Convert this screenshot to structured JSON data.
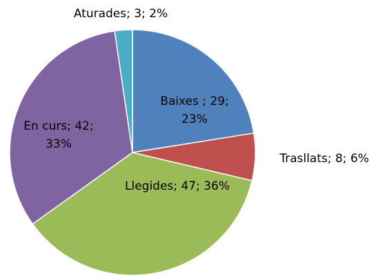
{
  "chart_data": {
    "type": "pie",
    "values": [
      29,
      8,
      47,
      42,
      3
    ],
    "value_labels": [
      "Baixes ; 29; 23%",
      "Trasllats; 8; 6%",
      "Llegides; 47; 36%",
      "En curs; 42; 33%",
      "Aturades; 3; 2%"
    ],
    "colors": [
      "#4f81bd",
      "#c0504d",
      "#9bbb59",
      "#8064a2",
      "#4bacc6"
    ]
  }
}
